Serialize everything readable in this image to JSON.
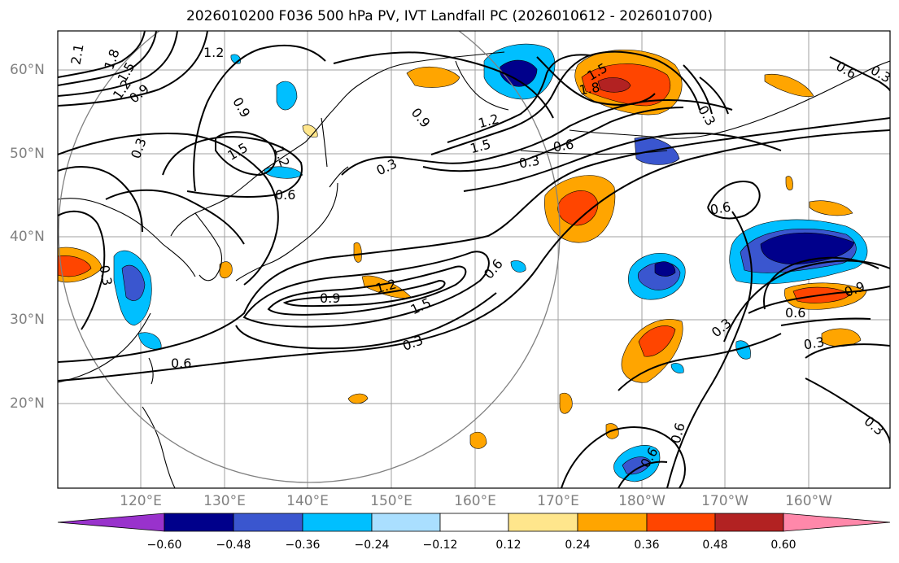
{
  "title": "2026010200 F036 500 hPa PV, IVT Landfall PC (2026010612 - 2026010700)",
  "lat_labels": [
    "60°N",
    "50°N",
    "40°N",
    "30°N",
    "20°N"
  ],
  "lon_labels": [
    "120°E",
    "130°E",
    "140°E",
    "150°E",
    "160°E",
    "170°E",
    "180°W",
    "170°W",
    "160°W"
  ],
  "colorbar": {
    "tick_labels": [
      "−0.60",
      "−0.48",
      "−0.36",
      "−0.24",
      "−0.12",
      "0.12",
      "0.24",
      "0.36",
      "0.48",
      "0.60"
    ],
    "colors": [
      "#9932cc",
      "#00008b",
      "#3a56cf",
      "#00bfff",
      "#aadfff",
      "#ffffff",
      "#ffe68c",
      "#ffa500",
      "#ff4500",
      "#b22222",
      "#ff88aa"
    ]
  },
  "contour_labels": [
    "2.1",
    "1.8",
    "1.5",
    "1.2",
    "0.9",
    "1.2",
    "0.9",
    "0.3",
    "1.5",
    "1.2",
    "0.6",
    "0.9",
    "1.2",
    "1.5",
    "0.3",
    "0.6",
    "1.8",
    "1.5",
    "0.3",
    "0.6",
    "0.9",
    "1.2",
    "1.5",
    "0.3",
    "0.6",
    "0.3",
    "0.6",
    "0.6",
    "0.3",
    "0.3",
    "0.6",
    "0.9",
    "0.3",
    "0.6",
    "0.3",
    "0.6",
    "0.3"
  ],
  "colors": {
    "land_outline": "#000000",
    "contour": "#000000",
    "grid": "#a0a0a0",
    "circle": "#808080"
  }
}
